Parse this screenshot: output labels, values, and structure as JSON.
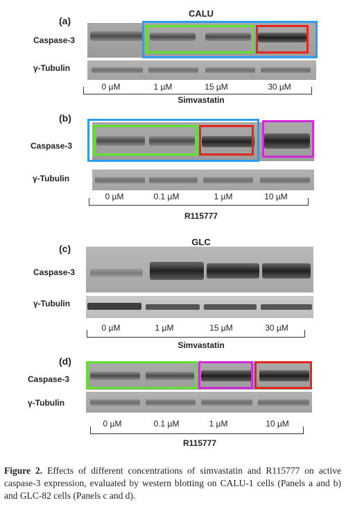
{
  "panels": [
    {
      "letter": "(a)",
      "title": "CALU",
      "row1": "Caspase-3",
      "row2": "γ-Tubulin",
      "lanes": [
        "0 µM",
        "1 µM",
        "15 µM",
        "30 µM"
      ],
      "axis": "Simvastatin"
    },
    {
      "letter": "(b)",
      "title": "",
      "row1": "Caspase-3",
      "row2": "γ-Tubulin",
      "lanes": [
        "0 µM",
        "0.1 µM",
        "1 µM",
        "10 µM"
      ],
      "axis": "R115777"
    },
    {
      "letter": "(c)",
      "title": "GLC",
      "row1": "Caspase-3",
      "row2": "γ-Tubulin",
      "lanes": [
        "0 µM",
        "1 µM",
        "15 µM",
        "30 µM"
      ],
      "axis": "Simvastatin"
    },
    {
      "letter": "(d)",
      "title": "",
      "row1": "Caspase-3",
      "row2": "γ-Tubulin",
      "lanes": [
        "0 µM",
        "0.1 µM",
        "1 µM",
        "10 µM"
      ],
      "axis": "R115777"
    }
  ],
  "caption": {
    "label": "Figure 2.",
    "text": "Effects of different concentrations of simvastatin and R115777 on active caspase-3 expression, evaluated by western blotting on CALU-1 cells (Panels a and b) and GLC-82 cells (Panels c and d)."
  },
  "colors": {
    "blue": "#2a9df4",
    "green": "#5fe22a",
    "red": "#e3261b",
    "magenta": "#d22ad6"
  }
}
